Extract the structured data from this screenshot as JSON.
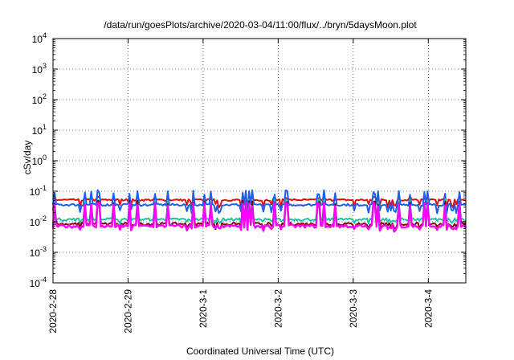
{
  "chart_data": {
    "type": "line",
    "title": "/data/run/goesPlots/archive/2020-03-04/11:00/flux/../bryn/5daysMoon.plot",
    "xlabel": "Coordinated Universal Time (UTC)",
    "ylabel": "cSv/day",
    "yscale": "log",
    "ylim": [
      0.0001,
      10000
    ],
    "yticks": [
      {
        "base": "10",
        "exp": "-4"
      },
      {
        "base": "10",
        "exp": "-3"
      },
      {
        "base": "10",
        "exp": "-2"
      },
      {
        "base": "10",
        "exp": "-1"
      },
      {
        "base": "10",
        "exp": "0"
      },
      {
        "base": "10",
        "exp": "1"
      },
      {
        "base": "10",
        "exp": "2"
      },
      {
        "base": "10",
        "exp": "3"
      },
      {
        "base": "10",
        "exp": "4"
      }
    ],
    "xlim": [
      "2020-02-28 00:00",
      "2020-03-04 12:00"
    ],
    "xticks": [
      "2020-2-28",
      "2020-2-29",
      "2020-3-1",
      "2020-3-2",
      "2020-3-3",
      "2020-3-4"
    ],
    "grid": true,
    "legend": "none",
    "series": [
      {
        "color": "#e01010",
        "base": 0.052,
        "spike": 0.075,
        "dip": 0.034,
        "noise": 0.07
      },
      {
        "color": "#1c5ff0",
        "base": 0.036,
        "spike": 0.11,
        "dip": 0.022,
        "noise": 0.08
      },
      {
        "color": "#22c3a0",
        "base": 0.012,
        "spike": 0.055,
        "dip": 0.0095,
        "noise": 0.1
      },
      {
        "color": "#800000",
        "base": 0.0085,
        "spike": 0.05,
        "dip": 0.0065,
        "noise": 0.1
      },
      {
        "color": "#ff00ff",
        "base": 0.0072,
        "spike": 0.045,
        "dip": 0.0055,
        "noise": 0.12
      }
    ]
  }
}
